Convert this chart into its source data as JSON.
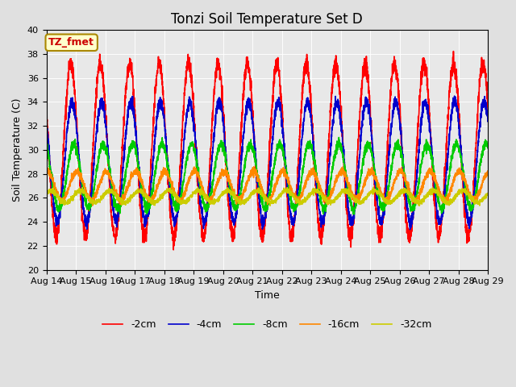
{
  "title": "Tonzi Soil Temperature Set D",
  "xlabel": "Time",
  "ylabel": "Soil Temperature (C)",
  "ylim": [
    20,
    40
  ],
  "xlim_days": [
    0,
    15
  ],
  "xtick_labels": [
    "Aug 14",
    "Aug 15",
    "Aug 16",
    "Aug 17",
    "Aug 18",
    "Aug 19",
    "Aug 20",
    "Aug 21",
    "Aug 22",
    "Aug 23",
    "Aug 24",
    "Aug 25",
    "Aug 26",
    "Aug 27",
    "Aug 28",
    "Aug 29"
  ],
  "legend_labels": [
    "-2cm",
    "-4cm",
    "-8cm",
    "-16cm",
    "-32cm"
  ],
  "line_colors": [
    "#ff0000",
    "#0000cc",
    "#00cc00",
    "#ff8800",
    "#cccc00"
  ],
  "figure_bg": "#e0e0e0",
  "plot_bg": "#e8e8e8",
  "annotation_text": "TZ_fmet",
  "annotation_color": "#cc0000",
  "annotation_bg": "#ffffcc",
  "annotation_border": "#aa8800",
  "title_fontsize": 12,
  "label_fontsize": 9,
  "tick_fontsize": 8,
  "legend_fontsize": 9,
  "linewidth": 1.2,
  "n_points": 3600,
  "cm2_amp": 7.2,
  "cm2_mean": 30.0,
  "cm2_phase": 0.58,
  "cm4_amp": 5.0,
  "cm4_mean": 29.0,
  "cm4_phase": 0.62,
  "cm8_amp": 2.7,
  "cm8_mean": 27.8,
  "cm8_phase": 0.68,
  "cm16_amp": 1.2,
  "cm16_mean": 27.0,
  "cm16_phase": 0.78,
  "cm32_amp": 0.5,
  "cm32_mean": 26.1,
  "cm32_phase": 0.9
}
